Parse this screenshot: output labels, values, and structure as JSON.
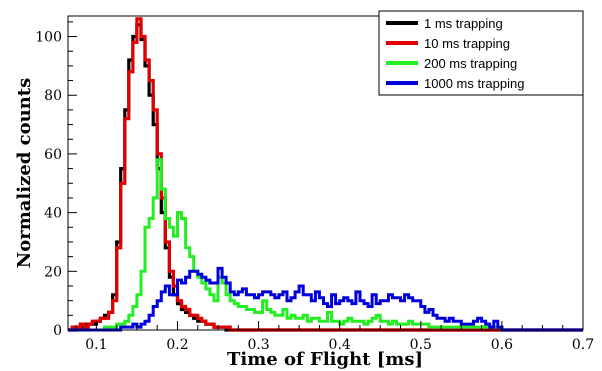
{
  "chart_data": {
    "type": "line",
    "title": "",
    "xlabel": "Time of Flight [ms]",
    "ylabel": "Normalized counts",
    "xlim": [
      0.065,
      0.7
    ],
    "ylim": [
      0,
      107
    ],
    "xticks": [
      0.1,
      0.2,
      0.3,
      0.4,
      0.5,
      0.6,
      0.7
    ],
    "xtick_labels": [
      "0.1",
      "0.2",
      "0.3",
      "0.4",
      "0.5",
      "0.6",
      "0.7"
    ],
    "yticks": [
      0,
      20,
      40,
      60,
      80,
      100
    ],
    "ytick_labels": [
      "0",
      "20",
      "40",
      "60",
      "80",
      "100"
    ],
    "grid": false,
    "legend_position": "top-right",
    "step": true,
    "series": [
      {
        "name": "1 ms trapping",
        "color": "#000000",
        "x": [
          0.065,
          0.07,
          0.075,
          0.08,
          0.085,
          0.09,
          0.095,
          0.1,
          0.105,
          0.11,
          0.115,
          0.12,
          0.125,
          0.13,
          0.135,
          0.14,
          0.145,
          0.15,
          0.155,
          0.16,
          0.165,
          0.17,
          0.175,
          0.18,
          0.185,
          0.19,
          0.195,
          0.2,
          0.205,
          0.21,
          0.215,
          0.22,
          0.225,
          0.23,
          0.235,
          0.24,
          0.245,
          0.25,
          0.255,
          0.26,
          0.265,
          0.27,
          0.275,
          0.28,
          0.7
        ],
        "values": [
          0,
          0,
          1,
          1,
          2,
          2,
          2,
          3,
          4,
          5,
          6,
          12,
          30,
          55,
          75,
          92,
          100,
          104,
          99,
          90,
          80,
          70,
          55,
          40,
          28,
          18,
          12,
          9,
          7,
          6,
          5,
          4,
          3,
          3,
          2,
          2,
          1,
          1,
          1,
          0,
          0,
          0,
          0,
          0,
          0
        ]
      },
      {
        "name": "10 ms trapping",
        "color": "#e00000",
        "x": [
          0.065,
          0.07,
          0.075,
          0.08,
          0.085,
          0.09,
          0.095,
          0.1,
          0.105,
          0.11,
          0.115,
          0.12,
          0.125,
          0.13,
          0.135,
          0.14,
          0.145,
          0.15,
          0.155,
          0.16,
          0.165,
          0.17,
          0.175,
          0.18,
          0.185,
          0.19,
          0.195,
          0.2,
          0.205,
          0.21,
          0.215,
          0.22,
          0.225,
          0.23,
          0.235,
          0.24,
          0.245,
          0.25,
          0.255,
          0.26,
          0.265,
          0.27,
          0.275,
          0.28,
          0.7
        ],
        "values": [
          0,
          1,
          1,
          2,
          1,
          2,
          3,
          3,
          4,
          4,
          6,
          10,
          28,
          50,
          72,
          88,
          98,
          106,
          100,
          92,
          85,
          75,
          60,
          45,
          30,
          20,
          15,
          10,
          8,
          7,
          5,
          5,
          4,
          3,
          2,
          2,
          1,
          1,
          1,
          1,
          0,
          0,
          0,
          0,
          0
        ]
      },
      {
        "name": "200 ms trapping",
        "color": "#22ee22",
        "x": [
          0.065,
          0.08,
          0.1,
          0.11,
          0.12,
          0.125,
          0.13,
          0.135,
          0.14,
          0.145,
          0.15,
          0.155,
          0.16,
          0.165,
          0.17,
          0.175,
          0.18,
          0.185,
          0.19,
          0.195,
          0.2,
          0.205,
          0.21,
          0.215,
          0.22,
          0.225,
          0.23,
          0.235,
          0.24,
          0.245,
          0.25,
          0.255,
          0.26,
          0.265,
          0.27,
          0.275,
          0.28,
          0.285,
          0.29,
          0.295,
          0.3,
          0.305,
          0.31,
          0.315,
          0.32,
          0.325,
          0.33,
          0.335,
          0.34,
          0.345,
          0.35,
          0.355,
          0.36,
          0.365,
          0.37,
          0.375,
          0.38,
          0.385,
          0.39,
          0.395,
          0.4,
          0.405,
          0.41,
          0.415,
          0.42,
          0.425,
          0.43,
          0.435,
          0.44,
          0.445,
          0.45,
          0.455,
          0.46,
          0.465,
          0.47,
          0.475,
          0.48,
          0.485,
          0.49,
          0.495,
          0.5,
          0.505,
          0.51,
          0.515,
          0.52,
          0.525,
          0.53,
          0.535,
          0.54,
          0.545,
          0.55,
          0.555,
          0.56,
          0.565,
          0.57,
          0.575,
          0.58,
          0.585,
          0.59,
          0.595,
          0.6,
          0.7
        ],
        "values": [
          0,
          0,
          0,
          1,
          1,
          2,
          2,
          3,
          5,
          8,
          12,
          20,
          35,
          38,
          45,
          58,
          48,
          38,
          35,
          32,
          40,
          38,
          28,
          25,
          20,
          18,
          16,
          14,
          12,
          10,
          18,
          16,
          12,
          10,
          9,
          8,
          8,
          7,
          7,
          6,
          6,
          10,
          7,
          6,
          5,
          5,
          7,
          4,
          5,
          4,
          4,
          5,
          3,
          4,
          4,
          3,
          3,
          6,
          3,
          3,
          2,
          3,
          4,
          3,
          3,
          3,
          2,
          3,
          4,
          5,
          3,
          3,
          2,
          3,
          2,
          2,
          2,
          3,
          2,
          2,
          2,
          2,
          1,
          1,
          1,
          1,
          1,
          1,
          1,
          1,
          1,
          1,
          1,
          1,
          1,
          1,
          1,
          1,
          1,
          1,
          0,
          0
        ]
      },
      {
        "name": "1000 ms trapping",
        "color": "#0000dd",
        "x": [
          0.065,
          0.12,
          0.13,
          0.14,
          0.145,
          0.15,
          0.155,
          0.16,
          0.165,
          0.17,
          0.175,
          0.18,
          0.185,
          0.19,
          0.195,
          0.2,
          0.205,
          0.21,
          0.215,
          0.22,
          0.225,
          0.23,
          0.235,
          0.24,
          0.245,
          0.25,
          0.255,
          0.26,
          0.265,
          0.27,
          0.275,
          0.28,
          0.285,
          0.29,
          0.295,
          0.3,
          0.305,
          0.31,
          0.315,
          0.32,
          0.325,
          0.33,
          0.335,
          0.34,
          0.345,
          0.35,
          0.355,
          0.36,
          0.365,
          0.37,
          0.375,
          0.38,
          0.385,
          0.39,
          0.395,
          0.4,
          0.405,
          0.41,
          0.415,
          0.42,
          0.425,
          0.43,
          0.435,
          0.44,
          0.445,
          0.45,
          0.455,
          0.46,
          0.465,
          0.47,
          0.475,
          0.48,
          0.485,
          0.49,
          0.495,
          0.5,
          0.505,
          0.51,
          0.515,
          0.52,
          0.525,
          0.53,
          0.535,
          0.54,
          0.545,
          0.55,
          0.555,
          0.56,
          0.565,
          0.57,
          0.575,
          0.58,
          0.585,
          0.59,
          0.595,
          0.6,
          0.605,
          0.7
        ],
        "values": [
          0,
          0,
          1,
          1,
          2,
          1,
          2,
          3,
          5,
          8,
          10,
          13,
          15,
          12,
          12,
          17,
          16,
          18,
          20,
          20,
          19,
          18,
          17,
          16,
          16,
          21,
          18,
          16,
          13,
          12,
          13,
          14,
          12,
          12,
          11,
          12,
          13,
          13,
          12,
          11,
          12,
          13,
          10,
          11,
          13,
          15,
          12,
          12,
          10,
          13,
          11,
          9,
          8,
          12,
          9,
          10,
          11,
          10,
          9,
          13,
          10,
          9,
          8,
          12,
          9,
          10,
          10,
          12,
          11,
          11,
          10,
          12,
          11,
          10,
          10,
          8,
          6,
          7,
          5,
          4,
          4,
          3,
          4,
          3,
          3,
          2,
          2,
          2,
          3,
          4,
          3,
          2,
          1,
          3,
          1,
          0,
          0,
          0
        ]
      }
    ]
  }
}
